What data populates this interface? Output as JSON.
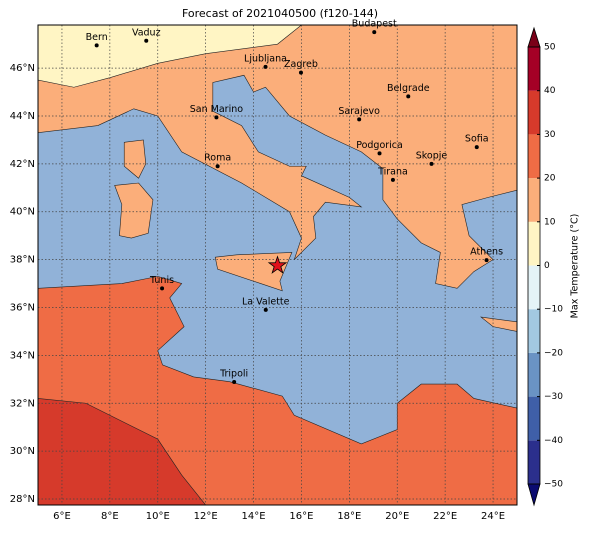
{
  "title": "Forecast of 2021040500 (f120-144)",
  "map": {
    "xlim": [
      5,
      25
    ],
    "ylim": [
      27.75,
      47.8
    ],
    "xticks": [
      {
        "value": 6,
        "label": "6°E"
      },
      {
        "value": 8,
        "label": "8°E"
      },
      {
        "value": 10,
        "label": "10°E"
      },
      {
        "value": 12,
        "label": "12°E"
      },
      {
        "value": 14,
        "label": "14°E"
      },
      {
        "value": 16,
        "label": "16°E"
      },
      {
        "value": 18,
        "label": "18°E"
      },
      {
        "value": 20,
        "label": "20°E"
      },
      {
        "value": 22,
        "label": "22°E"
      },
      {
        "value": 24,
        "label": "24°E"
      }
    ],
    "yticks": [
      {
        "value": 28,
        "label": "28°N"
      },
      {
        "value": 30,
        "label": "30°N"
      },
      {
        "value": 32,
        "label": "32°N"
      },
      {
        "value": 34,
        "label": "34°N"
      },
      {
        "value": 36,
        "label": "36°N"
      },
      {
        "value": 38,
        "label": "38°N"
      },
      {
        "value": 40,
        "label": "40°N"
      },
      {
        "value": 42,
        "label": "42°N"
      },
      {
        "value": 44,
        "label": "44°N"
      },
      {
        "value": 46,
        "label": "46°N"
      }
    ],
    "grid": true,
    "cities": [
      "Bern",
      "Vaduz",
      "Budapest",
      "Ljubljana",
      "Zagreb",
      "Belgrade",
      "San Marino",
      "Sarajevo",
      "Sofia",
      "Roma",
      "Podgorica",
      "Skopje",
      "Tirana",
      "Athens",
      "Tunis",
      "La Valette",
      "Tripoli"
    ]
  },
  "colorbar": {
    "label": "Max Temperature (°C)",
    "ticks": [
      {
        "value": -50,
        "label": "−50"
      },
      {
        "value": -40,
        "label": "−40"
      },
      {
        "value": -30,
        "label": "−30"
      },
      {
        "value": -20,
        "label": "−20"
      },
      {
        "value": -10,
        "label": "−10"
      },
      0,
      10,
      20,
      30,
      40,
      50
    ],
    "colors": [
      "#2b2f8c",
      "#3f5fa8",
      "#6a93c4",
      "#a2c8e1",
      "#e4f3f7",
      "#fff5c4",
      "#fbae7a",
      "#ef6c45",
      "#d63a2b",
      "#a50026"
    ],
    "extend_colors": [
      "#0b0b70",
      "#7a0018"
    ]
  }
}
